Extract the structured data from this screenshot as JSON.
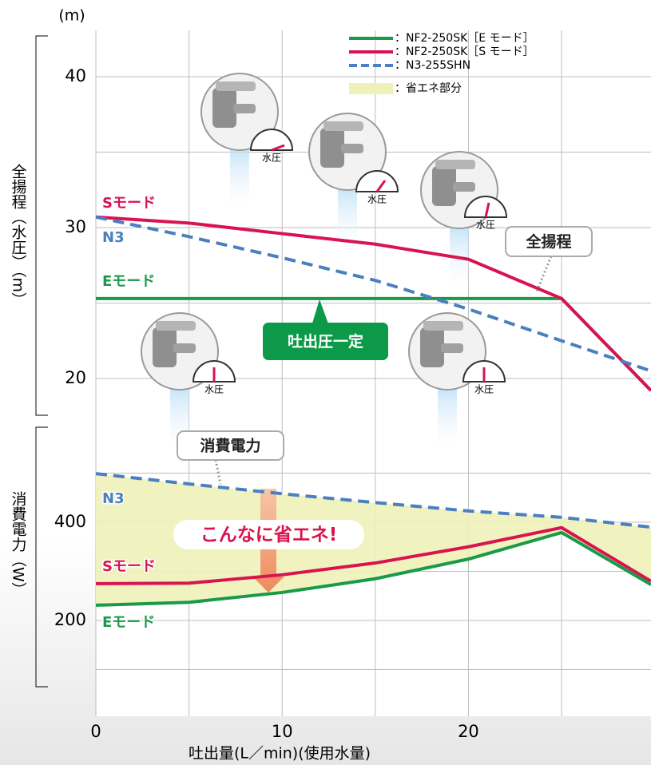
{
  "chart_data": [
    {
      "type": "line",
      "y_unit": "(m)",
      "y_label": "全揚程（水圧）（m）",
      "xlim": [
        0,
        29.8
      ],
      "ylim": [
        18,
        43
      ],
      "yticks": [
        20,
        30,
        40
      ],
      "minor_yticks": [
        25,
        35
      ],
      "grid": true,
      "x": [
        0,
        5,
        10,
        15,
        20,
        25,
        29.8
      ],
      "series": [
        {
          "name": "：NF2-250SK［E モード］",
          "label": "Eモード",
          "color": "#1a9a48",
          "dash": false,
          "values": [
            25.3,
            25.3,
            25.3,
            25.3,
            25.3,
            25.3,
            19.2
          ]
        },
        {
          "name": "：NF2-250SK［S モード］",
          "label": "Sモード",
          "color": "#d9134f",
          "dash": false,
          "values": [
            30.7,
            30.3,
            29.6,
            28.9,
            27.9,
            25.3,
            19.2
          ]
        },
        {
          "name": "：N3-255SHN",
          "label": "N3",
          "color": "#4a7fc0",
          "dash": true,
          "values": [
            30.7,
            29.4,
            28.0,
            26.5,
            24.6,
            22.5,
            20.5
          ]
        }
      ],
      "annotations": [
        "全揚程",
        "吐出圧一定"
      ],
      "gauge_label": "水圧"
    },
    {
      "type": "line",
      "y_label": "消費電力（W）",
      "x_label": "吐出量(L／min)(使用水量)",
      "xlim": [
        0,
        29.8
      ],
      "ylim": [
        0,
        500
      ],
      "yticks": [
        200,
        400
      ],
      "minor_yticks": [
        100,
        300,
        500
      ],
      "xticks": [
        0,
        10,
        20
      ],
      "minor_xticks": [
        5,
        15,
        25
      ],
      "grid": true,
      "x": [
        0,
        5,
        10,
        15,
        20,
        25,
        29.8
      ],
      "series": [
        {
          "label": "N3",
          "color": "#4a7fc0",
          "dash": true,
          "values": [
            499,
            478,
            458,
            440,
            423,
            410,
            390
          ]
        },
        {
          "label": "Sモード",
          "color": "#d9134f",
          "dash": false,
          "values": [
            275,
            276,
            293,
            317,
            350,
            389,
            280
          ]
        },
        {
          "label": "Eモード",
          "color": "#1a9a48",
          "dash": false,
          "values": [
            231,
            237,
            257,
            285,
            325,
            379,
            273
          ]
        }
      ],
      "area": {
        "name": "：省エネ部分",
        "color": "#eef2b8"
      },
      "annotations": [
        "消費電力",
        "こんなに省エネ!"
      ]
    }
  ]
}
